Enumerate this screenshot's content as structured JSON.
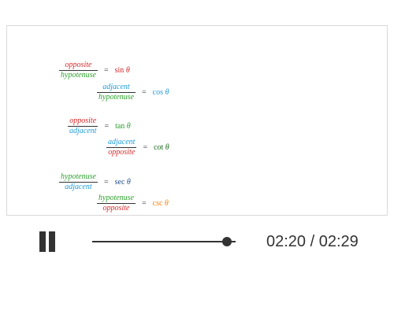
{
  "colors": {
    "opposite": "#d62728",
    "hypotenuse": "#2ca02c",
    "adjacent": "#1f9bd8",
    "sin": "#d62728",
    "cos": "#1f9bd8",
    "tan": "#2ca02c",
    "cot": "#1a6b1a",
    "sec": "#1f4e8c",
    "csc": "#ff7f0e"
  },
  "equations": [
    {
      "num": "opposite",
      "den": "hypotenuse",
      "num_color": "opposite",
      "den_color": "hypotenuse",
      "equals": "=",
      "func": "sin",
      "theta": "θ",
      "func_color": "sin"
    },
    {
      "num": "adjacent",
      "den": "hypotenuse",
      "num_color": "adjacent",
      "den_color": "hypotenuse",
      "equals": "=",
      "func": "cos",
      "theta": "θ",
      "func_color": "cos"
    },
    {
      "num": "opposite",
      "den": "adjacent",
      "num_color": "opposite",
      "den_color": "adjacent",
      "equals": "=",
      "func": "tan",
      "theta": "θ",
      "func_color": "tan"
    },
    {
      "num": "adjacent",
      "den": "opposite",
      "num_color": "adjacent",
      "den_color": "opposite",
      "equals": "=",
      "func": "cot",
      "theta": "θ",
      "func_color": "cot"
    },
    {
      "num": "hypotenuse",
      "den": "adjacent",
      "num_color": "hypotenuse",
      "den_color": "adjacent",
      "equals": "=",
      "func": "sec",
      "theta": "θ",
      "func_color": "sec"
    },
    {
      "num": "hypotenuse",
      "den": "opposite",
      "num_color": "hypotenuse",
      "den_color": "opposite",
      "equals": "=",
      "func": "csc",
      "theta": "θ",
      "func_color": "csc"
    }
  ],
  "player": {
    "state": "playing",
    "play_icon": "pause-icon",
    "current_time": "02:20",
    "separator": " / ",
    "duration": "02:29",
    "time_text": "02:20 / 02:29",
    "progress": 0.94
  }
}
